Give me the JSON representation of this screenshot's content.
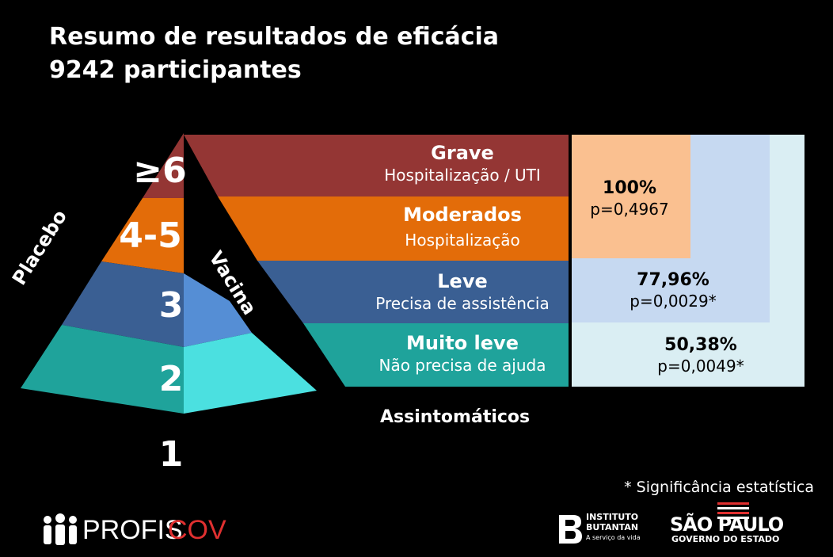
{
  "title": {
    "line1": "Resumo de resultados de eficácia",
    "line2": "9242 participantes"
  },
  "pyramid": {
    "levels": [
      "≥6",
      "4-5",
      "3",
      "2",
      "1"
    ],
    "placebo_label": "Placebo",
    "vacina_label": "Vacina"
  },
  "bands": [
    {
      "head": "Grave",
      "sub": "Hospitalização / UTI",
      "color": "#943634"
    },
    {
      "head": "Moderados",
      "sub": "Hospitalização",
      "color": "#E36C09"
    },
    {
      "head": "Leve",
      "sub": "Precisa de assistência",
      "color": "#3A5F93"
    },
    {
      "head": "Muito leve",
      "sub": "Não precisa de ajuda",
      "color": "#1FA39B"
    }
  ],
  "asymptomatic_label": "Assintomáticos",
  "efficacy": [
    {
      "pct": "100%",
      "p": "p=0,4967",
      "color": "#FAC090"
    },
    {
      "pct": "77,96%",
      "p": "p=0,0029*",
      "color": "#C6D9F1"
    },
    {
      "pct": "50,38%",
      "p": "p=0,0049*",
      "color": "#DAEEF3"
    }
  ],
  "footnote": "* Significância estatística",
  "logos": {
    "profiscov_a": "PROFIS",
    "profiscov_b": "COV",
    "butantan_1": "INSTITUTO",
    "butantan_2": "BUTANTAN",
    "butantan_3": "A serviço da vida",
    "sp_1": "SÃO PAULO",
    "sp_2": "GOVERNO DO ESTADO"
  }
}
